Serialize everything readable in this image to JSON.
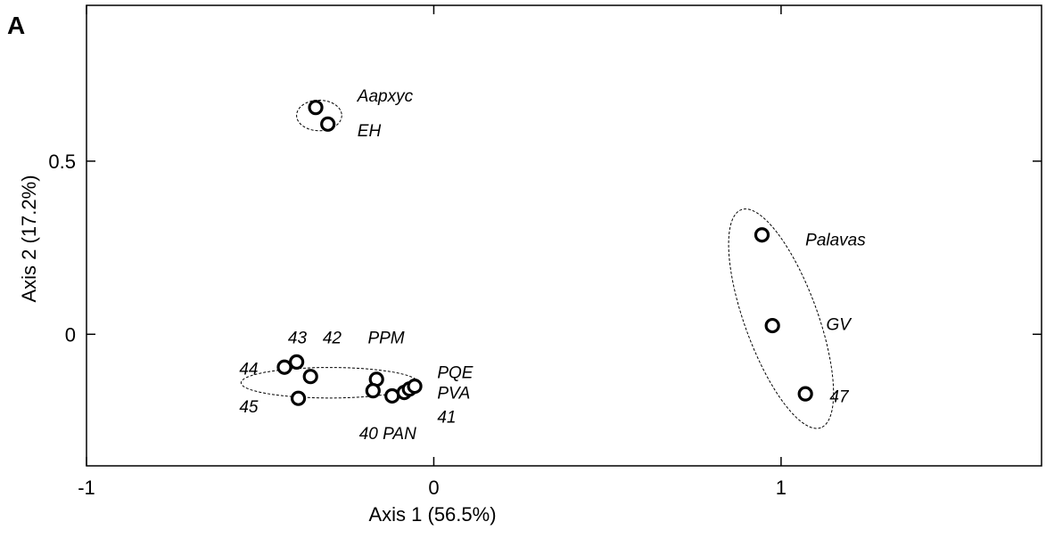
{
  "chart_data": {
    "type": "scatter",
    "panel_label": "A",
    "xlabel": "Axis 1 (56.5%)",
    "ylabel": "Axis 2 (17.2%)",
    "xlim": [
      -1,
      1.75
    ],
    "ylim": [
      -0.38,
      0.95
    ],
    "x_ticks": [
      {
        "value": -1,
        "label": "-1"
      },
      {
        "value": 0,
        "label": "0"
      },
      {
        "value": 1,
        "label": "1"
      }
    ],
    "y_ticks": [
      {
        "value": 0,
        "label": "0"
      },
      {
        "value": 0.5,
        "label": "0.5"
      }
    ],
    "grid": false,
    "points": [
      {
        "x": -0.34,
        "y": 0.655
      },
      {
        "x": -0.305,
        "y": 0.607
      },
      {
        "x": 0.945,
        "y": 0.287
      },
      {
        "x": 0.975,
        "y": 0.025
      },
      {
        "x": 1.07,
        "y": -0.172
      },
      {
        "x": -0.43,
        "y": -0.095
      },
      {
        "x": -0.395,
        "y": -0.08
      },
      {
        "x": -0.355,
        "y": -0.122
      },
      {
        "x": -0.39,
        "y": -0.185
      },
      {
        "x": -0.165,
        "y": -0.13
      },
      {
        "x": -0.175,
        "y": -0.163
      },
      {
        "x": -0.12,
        "y": -0.178
      },
      {
        "x": -0.085,
        "y": -0.168
      },
      {
        "x": -0.07,
        "y": -0.158
      },
      {
        "x": -0.055,
        "y": -0.15
      }
    ],
    "annotations": [
      {
        "text": "Aapxyc",
        "x": -0.22,
        "y": 0.69
      },
      {
        "text": "EH",
        "x": -0.22,
        "y": 0.59
      },
      {
        "text": "Palavas",
        "x": 1.07,
        "y": 0.275
      },
      {
        "text": "GV",
        "x": 1.13,
        "y": 0.03
      },
      {
        "text": "47",
        "x": 1.14,
        "y": -0.178
      },
      {
        "text": "43",
        "x": -0.42,
        "y": -0.008
      },
      {
        "text": "42",
        "x": -0.32,
        "y": -0.008
      },
      {
        "text": "PPM",
        "x": -0.19,
        "y": -0.008
      },
      {
        "text": "44",
        "x": -0.56,
        "y": -0.098
      },
      {
        "text": "45",
        "x": -0.56,
        "y": -0.207
      },
      {
        "text": "PQE",
        "x": 0.01,
        "y": -0.108
      },
      {
        "text": "PVA",
        "x": 0.01,
        "y": -0.168
      },
      {
        "text": "41",
        "x": 0.01,
        "y": -0.237
      },
      {
        "text": "40 PAN",
        "x": -0.215,
        "y": -0.285
      }
    ],
    "clusters": [
      {
        "cx": -0.33,
        "cy": 0.632,
        "rx": 0.065,
        "ry": 0.105,
        "rotate": 0
      },
      {
        "cx": 1.0,
        "cy": 0.045,
        "rx": 0.335,
        "ry": 0.105,
        "rotate": 70
      },
      {
        "cx": -0.3,
        "cy": -0.14,
        "rx": 0.255,
        "ry": 0.105,
        "rotate": 0
      }
    ]
  }
}
